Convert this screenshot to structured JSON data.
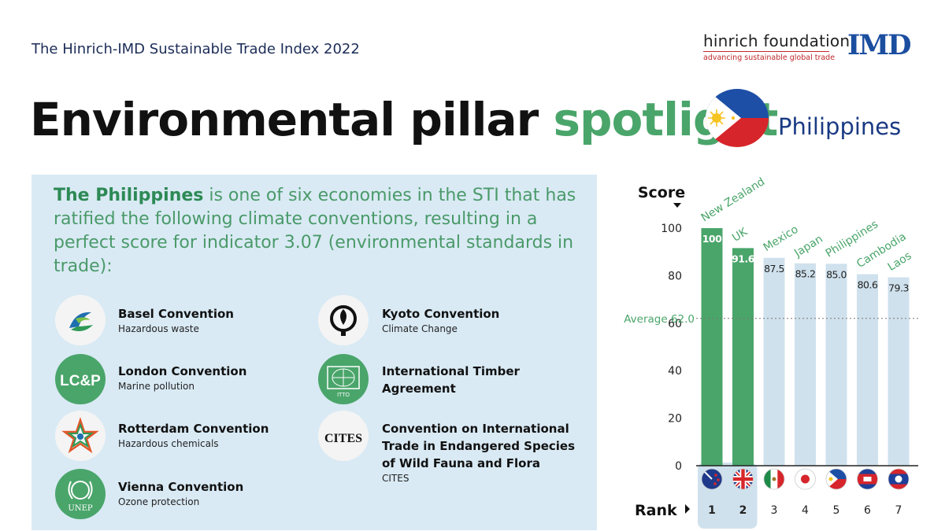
{
  "header": {
    "index_title": "The Hinrich-IMD Sustainable Trade Index 2022",
    "hinrich_name": "hinrich foundation",
    "hinrich_tagline": "advancing sustainable global trade",
    "imd_logo": "IMD",
    "title_part1": "Environmental pillar",
    "title_part2": "spotlight",
    "country": "Philippines"
  },
  "colors": {
    "green": "#4aa56a",
    "dark_green": "#2e8a55",
    "bar_light": "#cfe1ec",
    "panel": "#d9eaf5",
    "navy": "#1b2c57"
  },
  "intro": {
    "highlight": "The Philippines",
    "rest": " is one of six economies in the STI that has ratified the following climate conventions, resulting in a perfect score for indicator 3.07 (environmental standards in trade):"
  },
  "conventions": [
    {
      "title": "Basel Convention",
      "subtitle": "Hazardous waste",
      "icon": "basel-logo-icon"
    },
    {
      "title": "London Convention",
      "subtitle": "Marine pollution",
      "icon": "lcp-logo-icon",
      "icon_text": "LC&P"
    },
    {
      "title": "Rotterdam Convention",
      "subtitle": "Hazardous chemicals",
      "icon": "rotterdam-star-icon"
    },
    {
      "title": "Vienna Convention",
      "subtitle": "Ozone protection",
      "icon": "unep-logo-icon",
      "icon_text": "UNEP"
    },
    {
      "title": "Kyoto Convention",
      "subtitle": "Climate Change",
      "icon": "kyoto-logo-icon"
    },
    {
      "title": "International Timber Agreement",
      "title_lines": [
        "International Timber",
        "Agreement"
      ],
      "subtitle": "",
      "icon": "itto-globe-icon",
      "icon_text": "ITTO"
    },
    {
      "title": "Convention on International Trade in Endangered Species of Wild Fauna and Flora",
      "title_lines": [
        "Convention on International",
        "Trade in Endangered Species",
        "of Wild Fauna and Flora"
      ],
      "subtitle": "CITES",
      "icon": "cites-logo-icon",
      "icon_text": "CITES"
    }
  ],
  "chart_data": {
    "type": "bar",
    "ylabel": "Score",
    "xlabel": "Rank",
    "ylim": [
      0,
      100
    ],
    "yticks": [
      0,
      20,
      40,
      60,
      80,
      100
    ],
    "grid": false,
    "categories": [
      "New Zealand",
      "UK",
      "Mexico",
      "Japan",
      "Philippines",
      "Cambodia",
      "Laos"
    ],
    "values": [
      100,
      91.6,
      87.5,
      85.2,
      85.0,
      80.6,
      79.3
    ],
    "value_labels": [
      "100",
      "91.6",
      "87.5",
      "85.2",
      "85.0",
      "80.6",
      "79.3"
    ],
    "ranks": [
      "1",
      "2",
      "3",
      "4",
      "5",
      "6",
      "7"
    ],
    "highlighted": [
      true,
      true,
      false,
      false,
      false,
      false,
      false
    ],
    "flags": [
      "new-zealand-flag-icon",
      "uk-flag-icon",
      "mexico-flag-icon",
      "japan-flag-icon",
      "philippines-flag-icon",
      "cambodia-flag-icon",
      "laos-flag-icon"
    ],
    "average": {
      "label": "Average 62.0",
      "value": 62.0
    }
  }
}
